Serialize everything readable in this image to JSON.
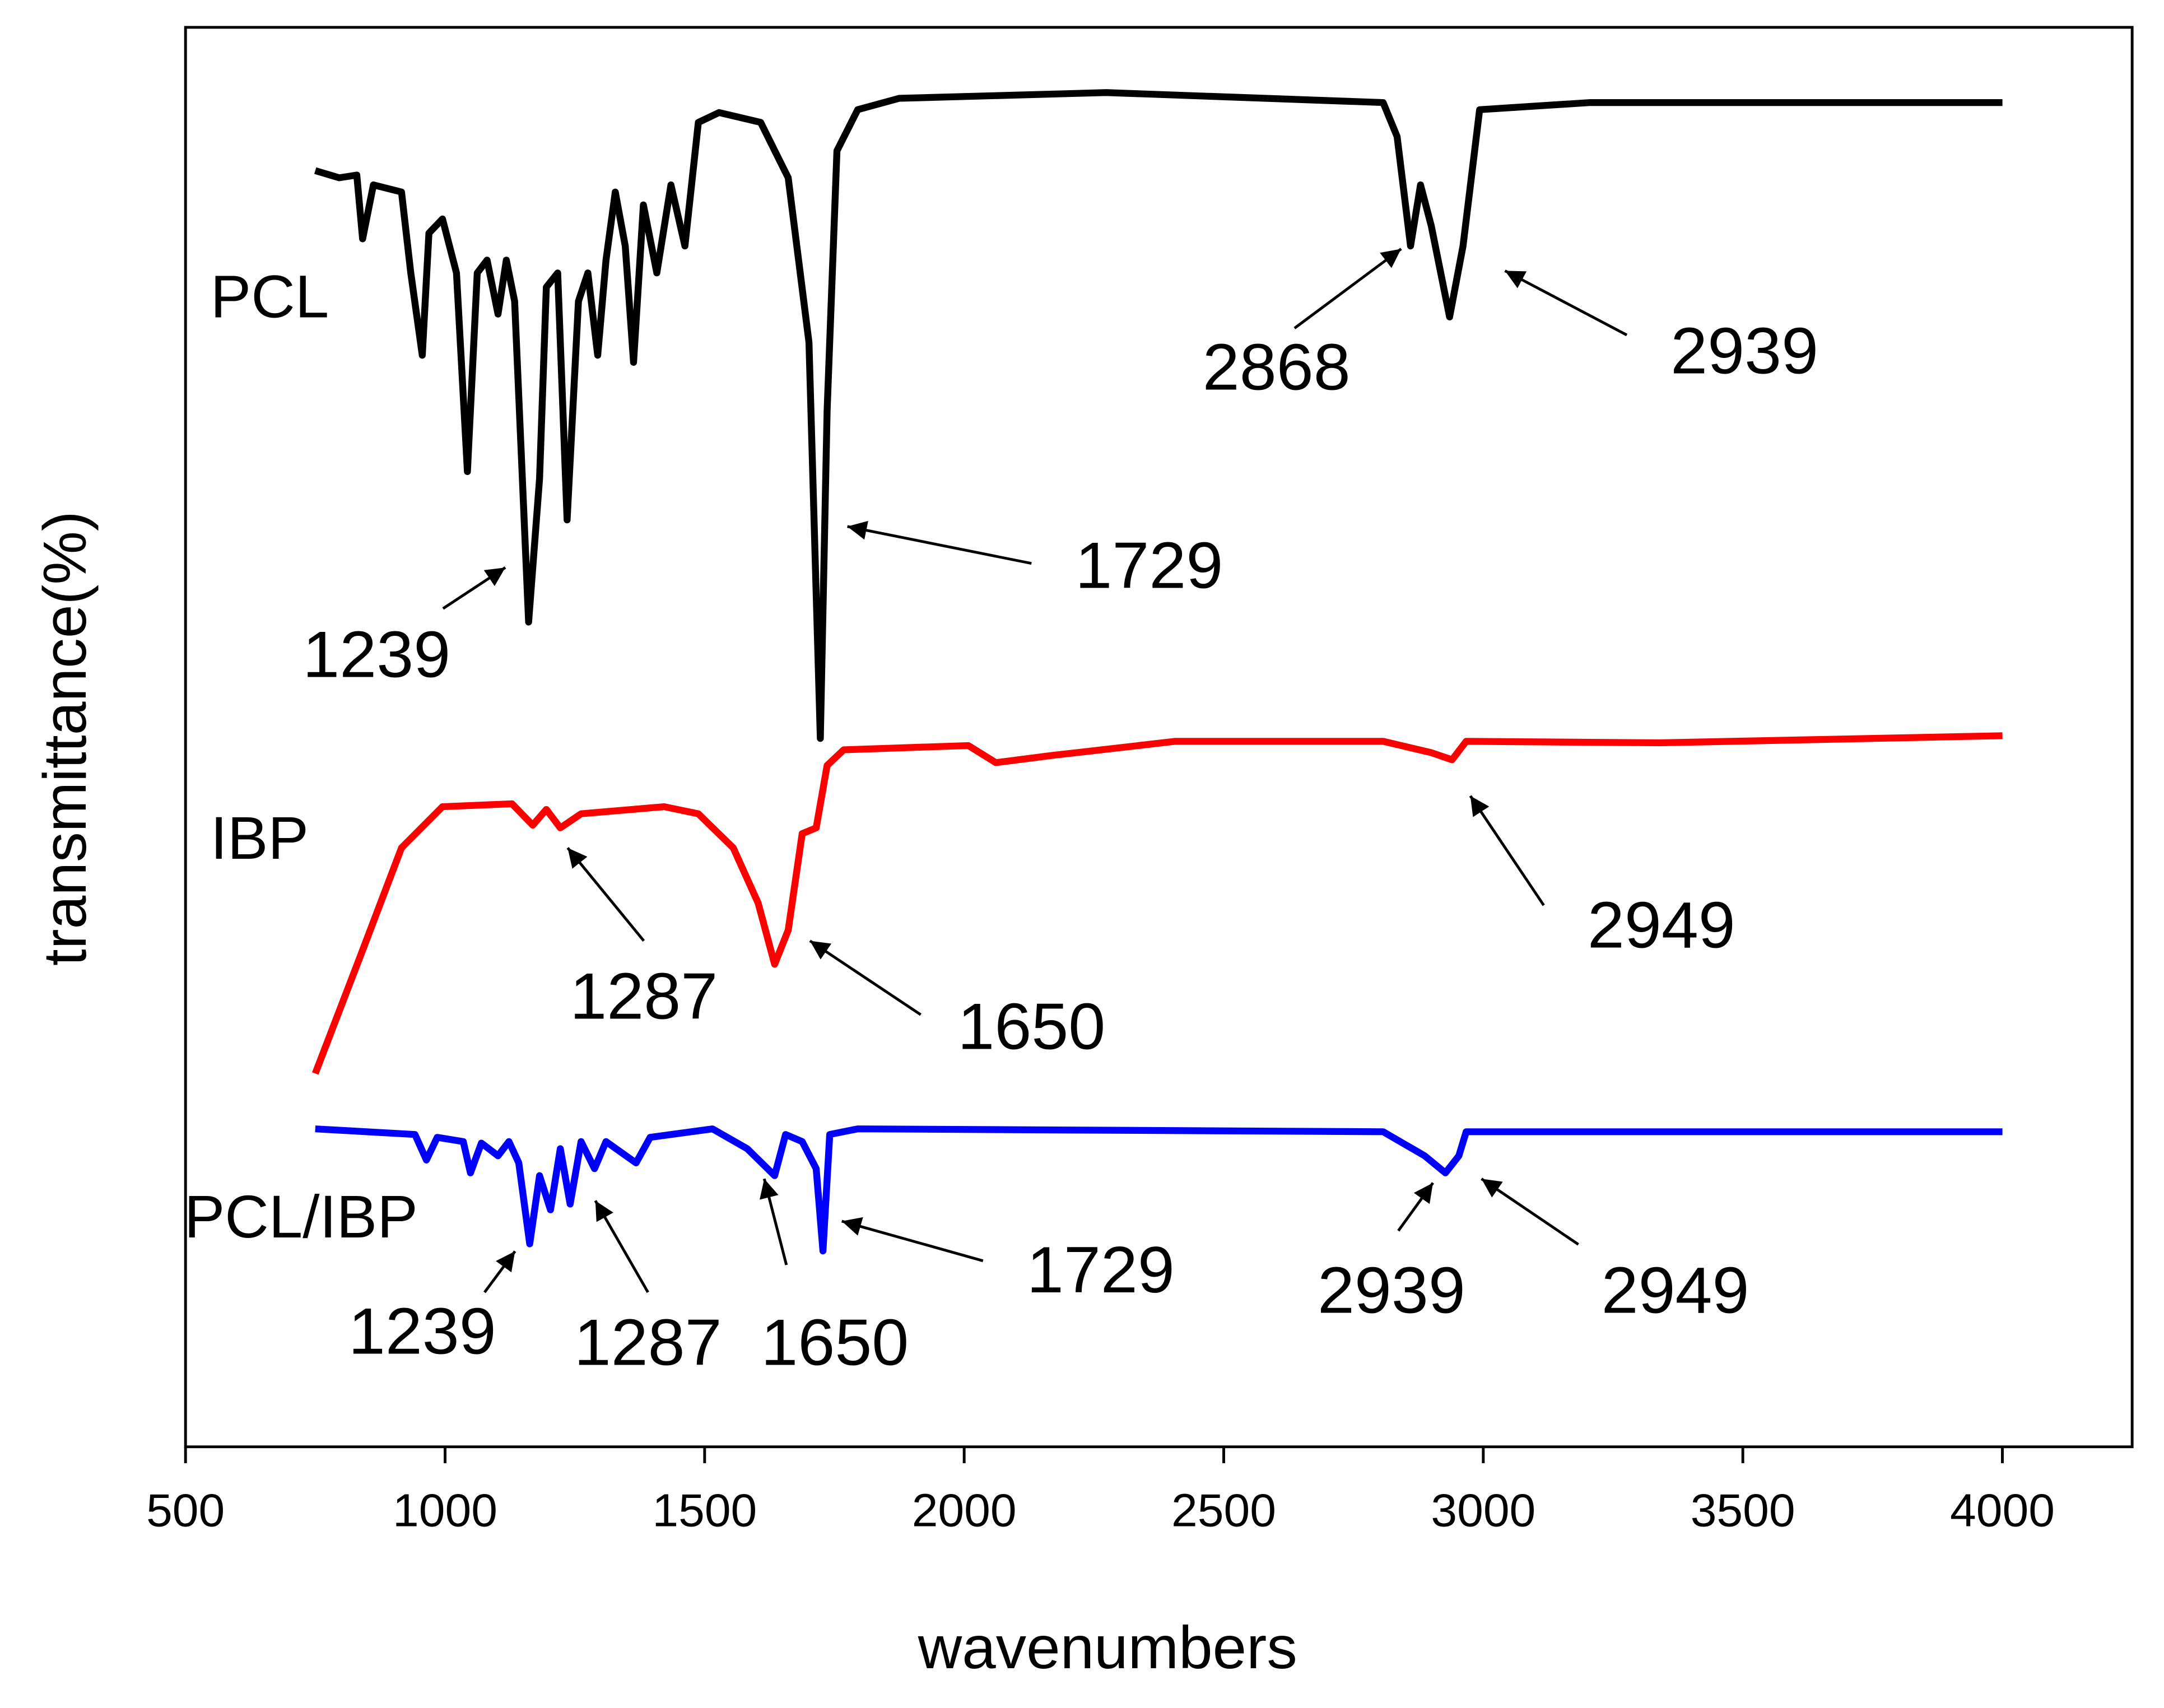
{
  "chart_data": {
    "type": "line",
    "x_label": "wavenumbers",
    "y_label": "transmittance(%)",
    "xlim": [
      500,
      4250
    ],
    "xticks": [
      500,
      1000,
      1500,
      2000,
      2500,
      3000,
      3500,
      4000
    ],
    "ylim": [
      0,
      100
    ],
    "series": [
      {
        "name": "PCL",
        "color": "#000000",
        "x": [
          750,
          796,
          830,
          841,
          862,
          916,
          934,
          956,
          969,
          995,
          1022,
          1043,
          1062,
          1081,
          1102,
          1118,
          1134,
          1161,
          1182,
          1195,
          1217,
          1235,
          1257,
          1275,
          1294,
          1310,
          1328,
          1347,
          1363,
          1382,
          1408,
          1435,
          1462,
          1488,
          1528,
          1608,
          1661,
          1701,
          1723,
          1736,
          1755,
          1795,
          1875,
          2274,
          2807,
          2834,
          2860,
          2879,
          2900,
          2935,
          2961,
          2993,
          3206,
          4000
        ],
        "values": [
          89.9,
          89.4,
          89.6,
          85.1,
          88.9,
          88.4,
          82.7,
          76.9,
          85.5,
          86.5,
          82.7,
          68.7,
          82.7,
          83.6,
          79.8,
          83.6,
          80.7,
          58.1,
          68.2,
          81.7,
          82.7,
          65.3,
          80.7,
          82.7,
          76.9,
          83.6,
          88.4,
          84.6,
          76.4,
          87.5,
          82.7,
          88.9,
          84.6,
          93.3,
          94.0,
          93.3,
          89.4,
          77.8,
          49.9,
          73.0,
          91.3,
          94.2,
          95.0,
          95.4,
          94.7,
          92.3,
          84.6,
          88.9,
          86.0,
          79.6,
          84.6,
          94.2,
          94.7,
          94.7
        ]
      },
      {
        "name": "IBP",
        "color": "#ff0000",
        "x": [
          750,
          836,
          916,
          995,
          1129,
          1169,
          1195,
          1222,
          1262,
          1422,
          1488,
          1555,
          1603,
          1635,
          1661,
          1688,
          1715,
          1736,
          1768,
          2008,
          2061,
          2168,
          2407,
          2807,
          2900,
          2940,
          2967,
          3340,
          4000
        ],
        "values": [
          26.3,
          34.5,
          42.2,
          45.1,
          45.3,
          43.8,
          44.9,
          43.6,
          44.6,
          45.1,
          44.6,
          42.2,
          38.3,
          34.0,
          36.4,
          43.2,
          43.6,
          48.0,
          49.1,
          49.4,
          48.2,
          48.7,
          49.7,
          49.7,
          48.9,
          48.4,
          49.7,
          49.6,
          50.1
        ]
      },
      {
        "name": "PCL/IBP",
        "color": "#0000ff",
        "x": [
          750,
          942,
          964,
          985,
          1035,
          1049,
          1070,
          1102,
          1123,
          1142,
          1163,
          1182,
          1203,
          1222,
          1241,
          1262,
          1288,
          1310,
          1368,
          1395,
          1515,
          1582,
          1635,
          1656,
          1688,
          1715,
          1728,
          1741,
          1795,
          2807,
          2887,
          2927,
          2953,
          2967,
          4000
        ],
        "values": [
          22.4,
          22.0,
          20.2,
          21.8,
          21.5,
          19.3,
          21.4,
          20.5,
          21.5,
          20.0,
          14.3,
          19.1,
          16.7,
          21.0,
          17.1,
          21.5,
          19.6,
          21.5,
          20.0,
          21.8,
          22.4,
          21.0,
          19.1,
          22.0,
          21.5,
          19.6,
          13.8,
          22.0,
          22.4,
          22.2,
          20.5,
          19.3,
          20.5,
          22.2,
          22.2
        ]
      }
    ],
    "annotations": [
      {
        "text": "1239"
      },
      {
        "text": "1729"
      },
      {
        "text": "2868"
      },
      {
        "text": "2939"
      },
      {
        "text": "1287"
      },
      {
        "text": "1650"
      },
      {
        "text": "2949"
      },
      {
        "text": "1239"
      },
      {
        "text": "1287"
      },
      {
        "text": "1650"
      },
      {
        "text": "1729"
      },
      {
        "text": "2939"
      },
      {
        "text": "2949"
      }
    ]
  }
}
